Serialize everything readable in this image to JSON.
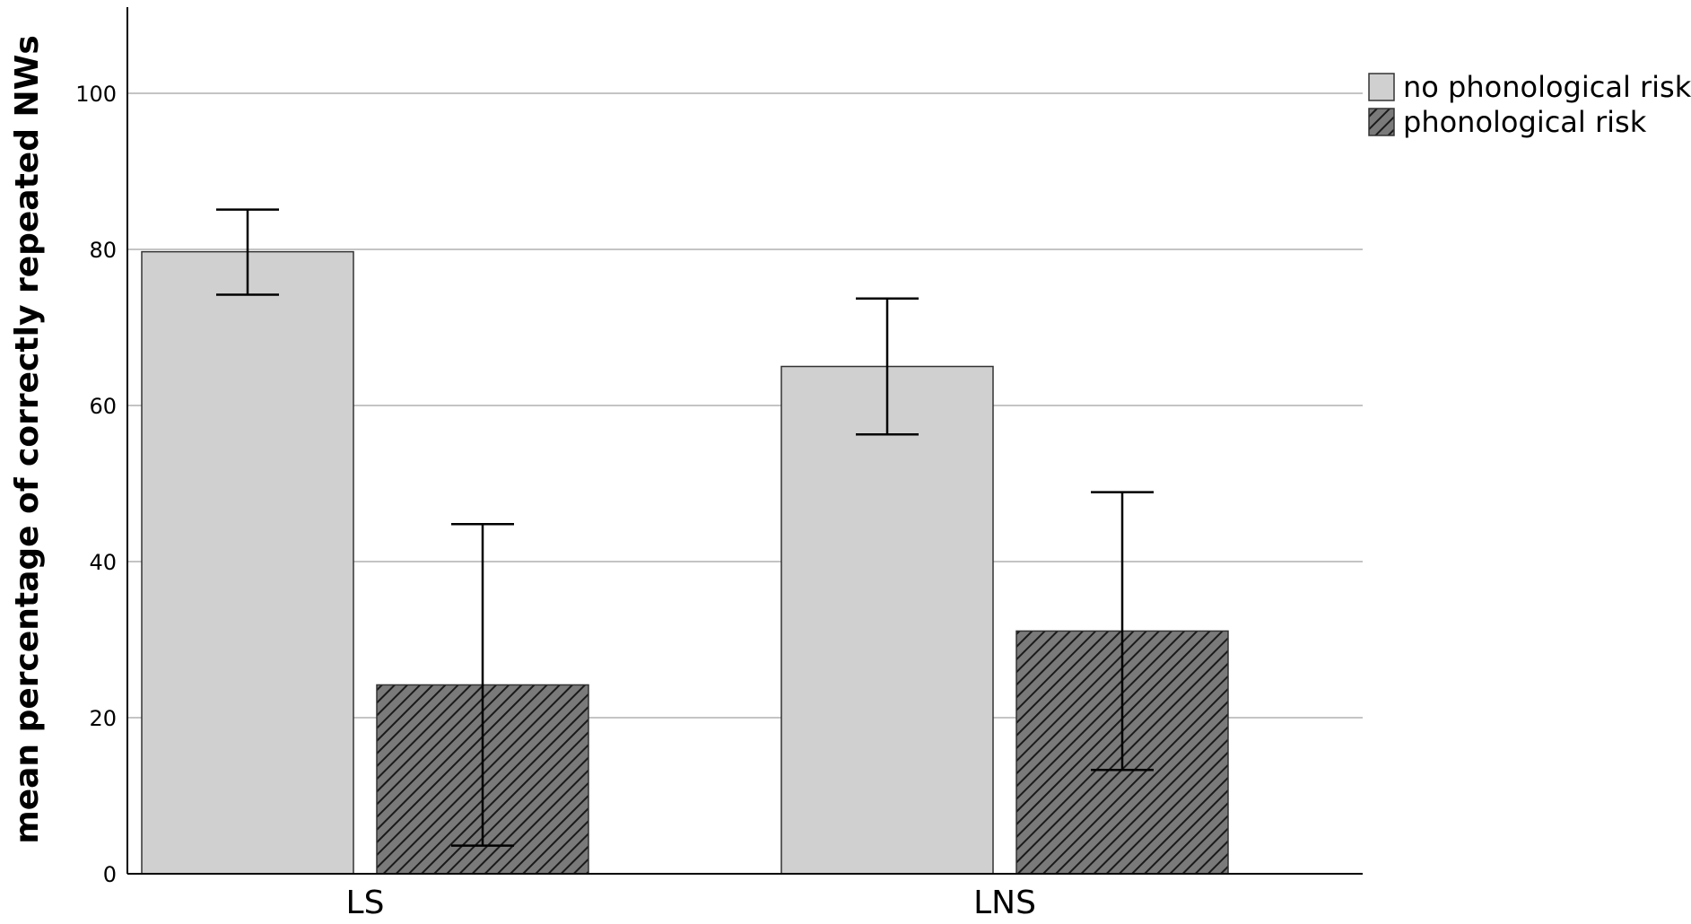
{
  "chart_data": {
    "type": "bar",
    "title": "",
    "xlabel": "",
    "ylabel": "mean percentage of correctly repeated NWs",
    "categories": [
      "LS",
      "LNS"
    ],
    "series": [
      {
        "name": "no phonological risk",
        "values": [
          79.7,
          65.0
        ],
        "error_low": [
          74.2,
          56.3
        ],
        "error_high": [
          85.1,
          73.7
        ],
        "fill": "#d0d0d0",
        "pattern": "solid"
      },
      {
        "name": "phonological risk",
        "values": [
          24.2,
          31.1
        ],
        "error_low": [
          3.6,
          13.3
        ],
        "error_high": [
          44.8,
          48.9
        ],
        "fill": "#7a7a7a",
        "pattern": "diagonal-hatch"
      }
    ],
    "ylim": [
      0,
      110
    ],
    "yticks": [
      0,
      20,
      40,
      60,
      80,
      100
    ],
    "grid": "horizontal",
    "legend_position": "top-right",
    "colors": {
      "gridline": "#c4c4c4",
      "axis": "#000000",
      "bar_outline": "#333333",
      "hatch_background": "#7a7a7a",
      "hatch_line": "#1a1a1a"
    }
  }
}
